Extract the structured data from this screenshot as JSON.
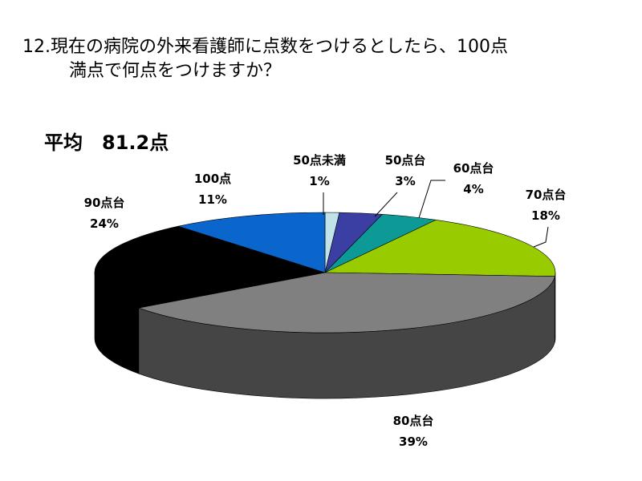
{
  "question": {
    "line1": "12.現在の病院の外来看護師に点数をつけるとしたら、100点",
    "line2": "満点で何点をつけますか？"
  },
  "average_label": "平均　81.2点",
  "chart_data": {
    "type": "pie",
    "title": "",
    "categories": [
      "50点未満",
      "50点台",
      "60点台",
      "70点台",
      "80点台",
      "90点台",
      "100点"
    ],
    "values": [
      1,
      3,
      4,
      18,
      39,
      24,
      11
    ],
    "value_labels": [
      "1%",
      "3%",
      "4%",
      "18%",
      "39%",
      "24%",
      "11%"
    ],
    "colors": [
      "#bfe3e8",
      "#3b3fa3",
      "#0d9a96",
      "#99cc00",
      "#808080",
      "#000000",
      "#0a66cc"
    ],
    "side_colors": [
      "#8fb2b6",
      "#23266a",
      "#086864",
      "#6b8f00",
      "#454545",
      "#000000",
      "#063f80"
    ],
    "legend": "none",
    "three_d": true
  }
}
